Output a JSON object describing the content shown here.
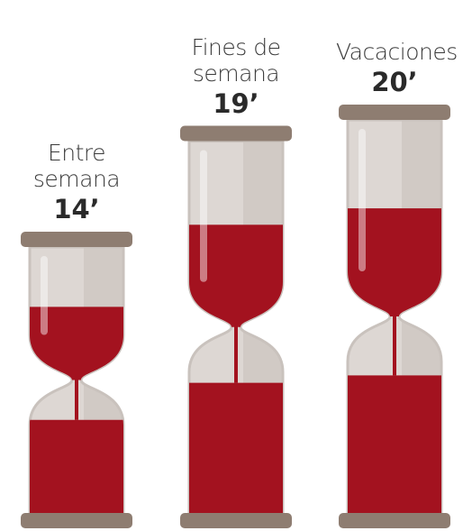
{
  "chart_data": {
    "type": "hourglass",
    "categories": [
      "Entre semana",
      "Fines de semana",
      "Vacaciones"
    ],
    "values": [
      14,
      19,
      20
    ],
    "value_labels": [
      "14’",
      "19’",
      "20’"
    ],
    "color": "#a3121f"
  }
}
